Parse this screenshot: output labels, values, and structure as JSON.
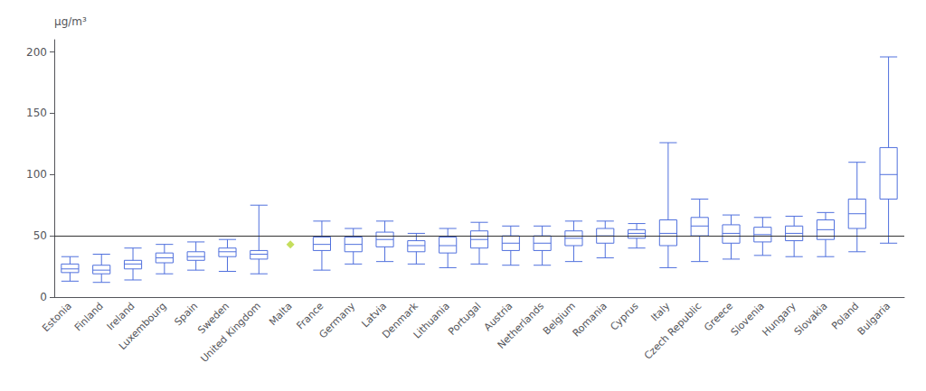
{
  "chart_data": {
    "type": "boxplot",
    "ylabel": "μg/m³",
    "categories": [
      "Estonia",
      "Finland",
      "Ireland",
      "Luxembourg",
      "Spain",
      "Sweden",
      "United Kingdom",
      "Malta",
      "France",
      "Germany",
      "Latvia",
      "Denmark",
      "Lithuania",
      "Portugal",
      "Austria",
      "Netherlands",
      "Belgium",
      "Romania",
      "Cyprus",
      "Italy",
      "Czech Republic",
      "Greece",
      "Slovenia",
      "Hungary",
      "Slovakia",
      "Poland",
      "Bulgaria"
    ],
    "values": [
      {
        "whisker_low": 13,
        "q1": 20,
        "median": 23,
        "q3": 27,
        "whisker_high": 33
      },
      {
        "whisker_low": 12,
        "q1": 19,
        "median": 22,
        "q3": 26,
        "whisker_high": 35
      },
      {
        "whisker_low": 14,
        "q1": 23,
        "median": 27,
        "q3": 30,
        "whisker_high": 40
      },
      {
        "whisker_low": 19,
        "q1": 28,
        "median": 32,
        "q3": 36,
        "whisker_high": 43
      },
      {
        "whisker_low": 22,
        "q1": 30,
        "median": 33,
        "q3": 37,
        "whisker_high": 45
      },
      {
        "whisker_low": 21,
        "q1": 33,
        "median": 37,
        "q3": 40,
        "whisker_high": 47
      },
      {
        "whisker_low": 19,
        "q1": 31,
        "median": 35,
        "q3": 38,
        "whisker_high": 75
      },
      null,
      {
        "whisker_low": 22,
        "q1": 38,
        "median": 43,
        "q3": 49,
        "whisker_high": 62
      },
      {
        "whisker_low": 27,
        "q1": 37,
        "median": 43,
        "q3": 49,
        "whisker_high": 56
      },
      {
        "whisker_low": 29,
        "q1": 41,
        "median": 47,
        "q3": 53,
        "whisker_high": 62
      },
      {
        "whisker_low": 27,
        "q1": 37,
        "median": 42,
        "q3": 46,
        "whisker_high": 52
      },
      {
        "whisker_low": 24,
        "q1": 36,
        "median": 42,
        "q3": 49,
        "whisker_high": 56
      },
      {
        "whisker_low": 27,
        "q1": 40,
        "median": 47,
        "q3": 54,
        "whisker_high": 61
      },
      {
        "whisker_low": 26,
        "q1": 38,
        "median": 44,
        "q3": 50,
        "whisker_high": 58
      },
      {
        "whisker_low": 26,
        "q1": 38,
        "median": 44,
        "q3": 50,
        "whisker_high": 58
      },
      {
        "whisker_low": 29,
        "q1": 42,
        "median": 48,
        "q3": 54,
        "whisker_high": 62
      },
      {
        "whisker_low": 32,
        "q1": 44,
        "median": 50,
        "q3": 56,
        "whisker_high": 62
      },
      {
        "whisker_low": 40,
        "q1": 48,
        "median": 52,
        "q3": 55,
        "whisker_high": 60
      },
      {
        "whisker_low": 24,
        "q1": 42,
        "median": 52,
        "q3": 63,
        "whisker_high": 126
      },
      {
        "whisker_low": 29,
        "q1": 50,
        "median": 58,
        "q3": 65,
        "whisker_high": 80
      },
      {
        "whisker_low": 31,
        "q1": 44,
        "median": 52,
        "q3": 59,
        "whisker_high": 67
      },
      {
        "whisker_low": 34,
        "q1": 45,
        "median": 51,
        "q3": 57,
        "whisker_high": 65
      },
      {
        "whisker_low": 33,
        "q1": 46,
        "median": 52,
        "q3": 58,
        "whisker_high": 66
      },
      {
        "whisker_low": 33,
        "q1": 47,
        "median": 55,
        "q3": 63,
        "whisker_high": 69
      },
      {
        "whisker_low": 37,
        "q1": 56,
        "median": 68,
        "q3": 80,
        "whisker_high": 110
      },
      {
        "whisker_low": 44,
        "q1": 80,
        "median": 100,
        "q3": 122,
        "whisker_high": 196
      }
    ],
    "fliers": [
      null,
      null,
      null,
      null,
      null,
      null,
      null,
      43,
      null,
      null,
      null,
      null,
      null,
      null,
      null,
      null,
      null,
      null,
      null,
      null,
      null,
      null,
      null,
      null,
      null,
      null,
      null
    ],
    "marker": "diamond",
    "reference_line": 50,
    "ylim": [
      0,
      210
    ],
    "yticks": [
      0,
      50,
      100,
      150,
      200
    ],
    "grid": false
  }
}
